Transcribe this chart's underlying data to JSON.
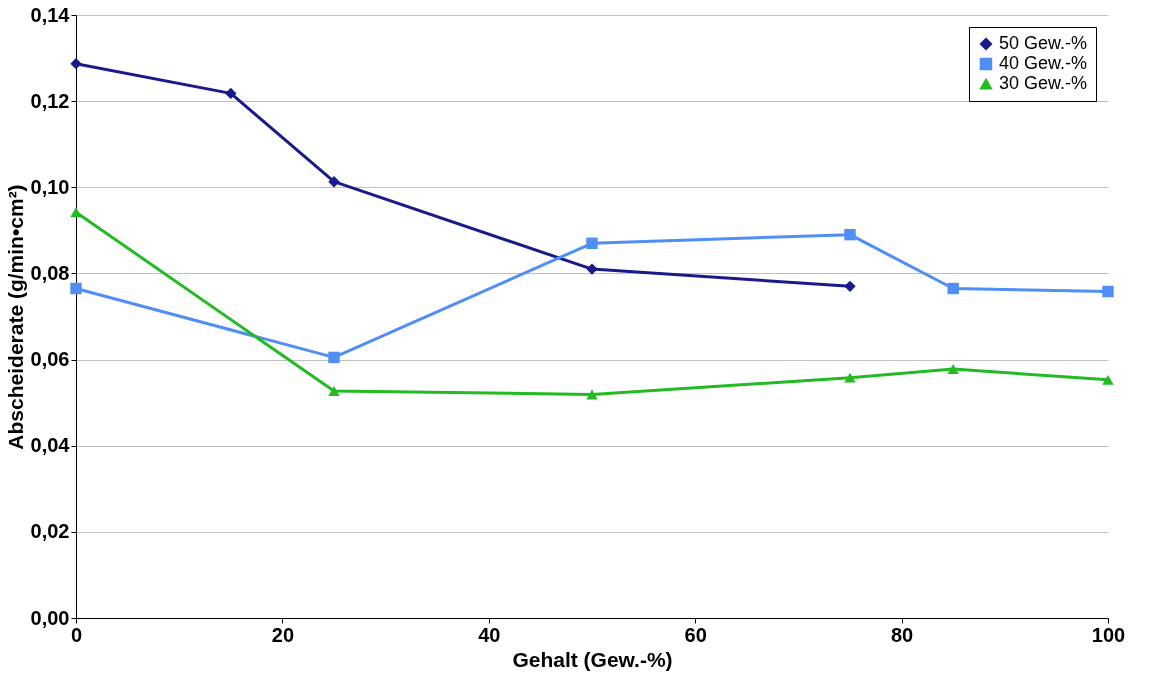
{
  "chart_data": {
    "type": "line",
    "xlabel": "Gehalt (Gew.-%)",
    "ylabel": "Abscheiderate (g/min•cm²)",
    "xlim": [
      0,
      100
    ],
    "xticks": [
      0,
      20,
      40,
      60,
      80,
      100
    ],
    "ylim": [
      0,
      0.14
    ],
    "yticks": [
      {
        "value": 0,
        "label": "0,00"
      },
      {
        "value": 0.02,
        "label": "0,02"
      },
      {
        "value": 0.04,
        "label": "0,04"
      },
      {
        "value": 0.06,
        "label": "0,06"
      },
      {
        "value": 0.08,
        "label": "0,08"
      },
      {
        "value": 0.1,
        "label": "0,10"
      },
      {
        "value": 0.12,
        "label": "0,12"
      },
      {
        "value": 0.14,
        "label": "0,14"
      }
    ],
    "grid": "y",
    "legend": "top right",
    "line_style": "solid",
    "series": [
      {
        "name": "50 Gew.-%",
        "color": "#1a1a8c",
        "marker": "diamond",
        "x": [
          0,
          15,
          25,
          50,
          75
        ],
        "values": [
          0.1287,
          0.1218,
          0.1013,
          0.081,
          0.077
        ]
      },
      {
        "name": "40 Gew.-%",
        "color": "#4f8ef5",
        "marker": "square",
        "x": [
          0,
          25,
          50,
          75,
          85,
          100
        ],
        "values": [
          0.0765,
          0.0605,
          0.087,
          0.089,
          0.0765,
          0.0758
        ]
      },
      {
        "name": "30 Gew.-%",
        "color": "#22bb22",
        "marker": "triangle",
        "x": [
          0,
          25,
          50,
          75,
          85,
          100
        ],
        "values": [
          0.0942,
          0.0527,
          0.0519,
          0.0558,
          0.0578,
          0.0553
        ]
      }
    ]
  }
}
